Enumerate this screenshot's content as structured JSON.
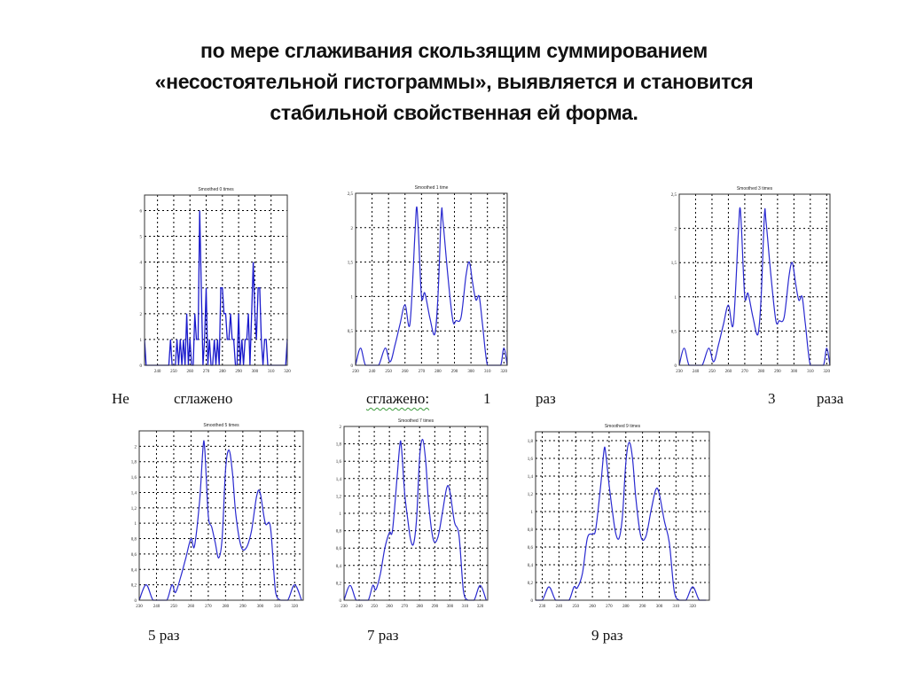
{
  "title": {
    "lines": [
      "по мере сглаживания скользящим суммированием",
      "«несостоятельной гистограммы», выявляется и становится",
      "стабильной свойственная ей  форма."
    ]
  },
  "captions": {
    "ne": "Не",
    "ne_smoothed": "сглажено",
    "smoothed": "сглажено:",
    "one": "1",
    "raz1": "раз",
    "three": "3",
    "raza": "раза",
    "five": "5 раз",
    "seven": "7 раз",
    "nine": "9 раз"
  },
  "plot_titles": [
    "Smoothed 0 times",
    "Smoothed 1 time",
    "Smoothed 3 times",
    "Smoothed 5 times",
    "Smoothed 7 times",
    "Smoothed 9 times"
  ],
  "chart_data": [
    {
      "type": "line",
      "title": "сглажено 0 раз (histogram, n=0)",
      "xlabel": "",
      "ylabel": "",
      "xlim": [
        232,
        320
      ],
      "ylim": [
        0,
        6.6
      ],
      "xticks": [
        240,
        250,
        260,
        270,
        280,
        290,
        300,
        310,
        320
      ],
      "yticks": [
        0,
        1,
        2,
        3,
        4,
        5,
        6
      ],
      "grid": true,
      "x": [
        232,
        233,
        234,
        247,
        248,
        249,
        251,
        252,
        253,
        254,
        255,
        256,
        257,
        258,
        259,
        260,
        261,
        262,
        263,
        264,
        265,
        266,
        267,
        268,
        269,
        270,
        271,
        272,
        273,
        274,
        275,
        276,
        277,
        278,
        279,
        280,
        281,
        282,
        283,
        284,
        285,
        286,
        287,
        288,
        289,
        290,
        291,
        292,
        293,
        294,
        295,
        296,
        297,
        298,
        299,
        300,
        301,
        302,
        303,
        304,
        305,
        306,
        307,
        308,
        319,
        320
      ],
      "values": [
        1,
        0,
        0,
        0,
        1,
        0,
        0,
        1,
        0,
        1,
        0,
        1,
        0,
        2,
        0,
        1,
        0,
        0,
        2,
        1,
        1,
        6,
        3,
        0,
        1,
        3,
        0,
        1,
        0,
        0,
        1,
        0,
        1,
        0,
        3,
        3,
        2,
        2,
        1,
        1,
        2,
        1,
        1,
        0,
        0,
        2,
        0,
        1,
        0,
        1,
        1,
        2,
        0,
        2,
        4,
        2,
        1,
        3,
        3,
        1,
        0,
        1,
        1,
        0,
        0,
        1
      ]
    },
    {
      "type": "line",
      "title": "сглажено 1 раз",
      "xlim": [
        230,
        322
      ],
      "ylim": [
        0,
        2.5
      ],
      "xticks": [
        230,
        240,
        250,
        260,
        270,
        280,
        290,
        300,
        310,
        320
      ],
      "yticks": [
        0,
        0.5,
        1,
        1.5,
        2,
        2.5
      ],
      "grid": true,
      "x": [
        230,
        233,
        236,
        240,
        244,
        248,
        251,
        254,
        257,
        260,
        263,
        266,
        267,
        268,
        270,
        272,
        275,
        278,
        280,
        282,
        283,
        286,
        289,
        291,
        294,
        297,
        299,
        301,
        303,
        305,
        307,
        310,
        314,
        318,
        320,
        322
      ],
      "values": [
        0,
        0.25,
        0,
        0,
        0,
        0.25,
        0.05,
        0.3,
        0.6,
        0.88,
        0.6,
        1.9,
        2.3,
        2.0,
        1.0,
        1.05,
        0.7,
        0.45,
        1.0,
        2.2,
        2.1,
        1.3,
        0.65,
        0.65,
        0.7,
        1.3,
        1.5,
        1.2,
        0.95,
        1.0,
        0.6,
        0,
        0,
        0,
        0.25,
        0
      ]
    },
    {
      "type": "line",
      "title": "сглажено 3 раза",
      "xlim": [
        230,
        322
      ],
      "ylim": [
        0,
        2.5
      ],
      "xticks": [
        230,
        240,
        250,
        260,
        270,
        280,
        290,
        300,
        310,
        320
      ],
      "yticks": [
        0,
        0.5,
        1,
        1.5,
        2,
        2.5
      ],
      "grid": true,
      "x": [
        230,
        233,
        236,
        240,
        244,
        248,
        251,
        254,
        257,
        260,
        263,
        266,
        267,
        268,
        270,
        272,
        275,
        278,
        280,
        282,
        283,
        286,
        289,
        291,
        294,
        297,
        299,
        301,
        303,
        305,
        307,
        310,
        314,
        318,
        320,
        322
      ],
      "values": [
        0,
        0.25,
        0,
        0,
        0,
        0.25,
        0.05,
        0.3,
        0.6,
        0.88,
        0.6,
        1.9,
        2.3,
        2.0,
        1.0,
        1.05,
        0.7,
        0.45,
        1.0,
        2.2,
        2.1,
        1.3,
        0.65,
        0.65,
        0.7,
        1.3,
        1.5,
        1.2,
        0.95,
        1.0,
        0.6,
        0,
        0,
        0,
        0.25,
        0
      ]
    },
    {
      "type": "line",
      "title": "сглажено 5 раз",
      "xlim": [
        230,
        325
      ],
      "ylim": [
        0,
        2.2
      ],
      "xticks": [
        230,
        240,
        250,
        260,
        270,
        280,
        290,
        300,
        310,
        320
      ],
      "yticks": [
        0,
        0.2,
        0.4,
        0.6,
        0.8,
        1,
        1.2,
        1.4,
        1.6,
        1.8,
        2
      ],
      "grid": true,
      "x": [
        230,
        234,
        238,
        242,
        246,
        249,
        251,
        254,
        257,
        260,
        262,
        265,
        267,
        268,
        270,
        272,
        274,
        276,
        278,
        280,
        282,
        284,
        286,
        289,
        292,
        295,
        298,
        300,
        303,
        306,
        309,
        312,
        316,
        320,
        324
      ],
      "values": [
        0,
        0.2,
        0,
        0,
        0,
        0.2,
        0.1,
        0.3,
        0.55,
        0.8,
        0.7,
        1.3,
        2.0,
        1.95,
        1.1,
        0.95,
        0.75,
        0.55,
        0.8,
        1.7,
        1.95,
        1.65,
        1.1,
        0.7,
        0.68,
        0.9,
        1.35,
        1.4,
        1.0,
        0.95,
        0.1,
        0,
        0,
        0.2,
        0
      ]
    },
    {
      "type": "line",
      "title": "сглажено 7 раз",
      "xlim": [
        230,
        325
      ],
      "ylim": [
        0,
        2.0
      ],
      "xticks": [
        230,
        240,
        250,
        260,
        270,
        280,
        290,
        300,
        310,
        320
      ],
      "yticks": [
        0,
        0.2,
        0.4,
        0.6,
        0.8,
        1,
        1.2,
        1.4,
        1.6,
        1.8,
        2
      ],
      "grid": true,
      "x": [
        230,
        234,
        238,
        242,
        246,
        249,
        251,
        254,
        257,
        260,
        262,
        265,
        267,
        268,
        270,
        272,
        274,
        276,
        278,
        280,
        282,
        284,
        286,
        289,
        292,
        295,
        298,
        300,
        303,
        306,
        309,
        312,
        316,
        320,
        324
      ],
      "values": [
        0,
        0.17,
        0,
        0,
        0,
        0.17,
        0.12,
        0.3,
        0.6,
        0.78,
        0.8,
        1.4,
        1.8,
        1.75,
        1.25,
        0.95,
        0.7,
        0.65,
        0.95,
        1.65,
        1.85,
        1.6,
        1.1,
        0.7,
        0.72,
        1.0,
        1.3,
        1.25,
        0.9,
        0.75,
        0.1,
        0,
        0,
        0.17,
        0
      ]
    },
    {
      "type": "line",
      "title": "сглажено 9 раз",
      "xlim": [
        226,
        330
      ],
      "ylim": [
        0,
        1.9
      ],
      "xticks": [
        230,
        240,
        250,
        260,
        270,
        280,
        290,
        300,
        310,
        320
      ],
      "yticks": [
        0,
        0.2,
        0.4,
        0.6,
        0.8,
        1,
        1.2,
        1.4,
        1.6,
        1.8
      ],
      "grid": true,
      "x": [
        226,
        230,
        234,
        238,
        242,
        246,
        249,
        251,
        254,
        257,
        260,
        262,
        265,
        267,
        268,
        270,
        272,
        274,
        276,
        278,
        280,
        282,
        284,
        286,
        289,
        292,
        295,
        298,
        300,
        303,
        306,
        309,
        312,
        316,
        320,
        324,
        328
      ],
      "values": [
        0,
        0,
        0.15,
        0,
        0,
        0,
        0.15,
        0.14,
        0.3,
        0.7,
        0.75,
        0.8,
        1.3,
        1.7,
        1.65,
        1.3,
        1.0,
        0.75,
        0.7,
        0.95,
        1.55,
        1.78,
        1.6,
        1.15,
        0.72,
        0.72,
        1.0,
        1.25,
        1.2,
        0.9,
        0.65,
        0.1,
        0,
        0,
        0.15,
        0,
        0
      ]
    }
  ]
}
